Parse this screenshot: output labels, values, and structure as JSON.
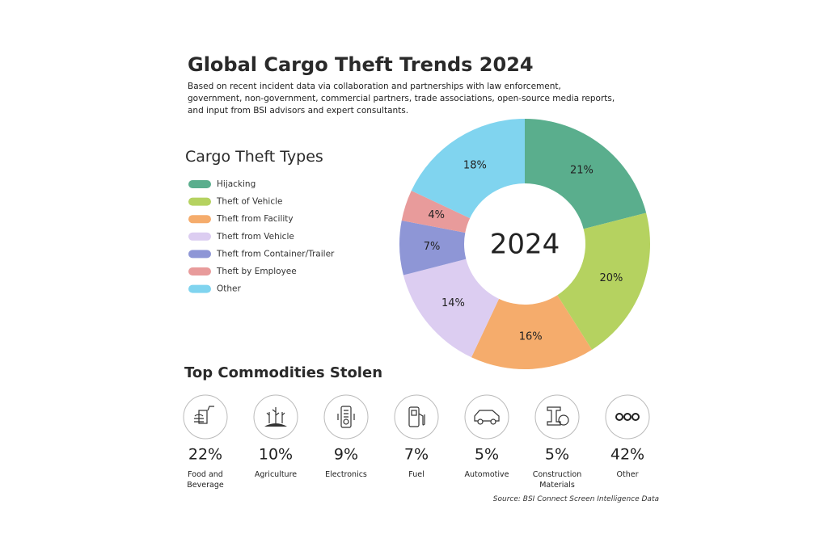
{
  "title": "Global Cargo Theft Trends 2024",
  "subtitle": "Based on recent incident data via collaboration and partnerships with law enforcement, government, non-government, commercial partners, trade associations, open-source media reports, and input from BSI advisors and expert consultants.",
  "chart_data": {
    "type": "donut",
    "title": "Cargo Theft Types",
    "center_label": "2024",
    "categories": [
      "Hijacking",
      "Theft of Vehicle",
      "Theft from Facility",
      "Theft from Vehicle",
      "Theft from Container/Trailer",
      "Theft by Employee",
      "Other"
    ],
    "values": [
      21,
      20,
      16,
      14,
      7,
      4,
      18
    ],
    "value_labels": [
      "21%",
      "20%",
      "16%",
      "14%",
      "7%",
      "4%",
      "18%"
    ],
    "colors": [
      "#5aae8d",
      "#b5d260",
      "#f5ac6c",
      "#dccdf1",
      "#8e96d6",
      "#e89b9b",
      "#80d4ef"
    ]
  },
  "commodities": {
    "title": "Top Commodities Stolen",
    "items": [
      {
        "percent": "22%",
        "label": "Food and Beverage"
      },
      {
        "percent": "10%",
        "label": "Agriculture"
      },
      {
        "percent": "9%",
        "label": "Electronics"
      },
      {
        "percent": "7%",
        "label": "Fuel"
      },
      {
        "percent": "5%",
        "label": "Automotive"
      },
      {
        "percent": "5%",
        "label": "Construction Materials"
      },
      {
        "percent": "42%",
        "label": "Other"
      }
    ]
  },
  "source": "Source: BSI Connect Screen Intelligence Data"
}
